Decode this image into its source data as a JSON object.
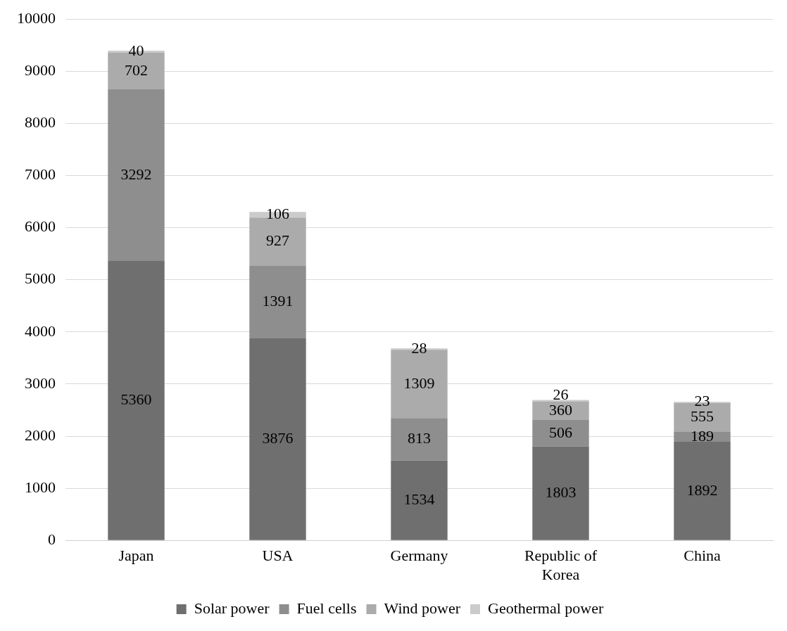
{
  "chart_data": {
    "type": "bar",
    "stacked": true,
    "categories": [
      "Japan",
      "USA",
      "Germany",
      "Republic of Korea",
      "China"
    ],
    "series": [
      {
        "name": "Solar power",
        "color": "#6f6f6f",
        "values": [
          5360,
          3876,
          1534,
          1803,
          1892
        ]
      },
      {
        "name": "Fuel cells",
        "color": "#8e8e8e",
        "values": [
          3292,
          1391,
          813,
          506,
          189
        ]
      },
      {
        "name": "Wind power",
        "color": "#ababab",
        "values": [
          702,
          927,
          1309,
          360,
          555
        ]
      },
      {
        "name": "Geothermal power",
        "color": "#cbcbcb",
        "values": [
          40,
          106,
          28,
          26,
          23
        ]
      }
    ],
    "ylim": [
      0,
      10000
    ],
    "yticks": [
      0,
      1000,
      2000,
      3000,
      4000,
      5000,
      6000,
      7000,
      8000,
      9000,
      10000
    ],
    "grid": "y",
    "legend": "bottom",
    "data_labels": true
  }
}
